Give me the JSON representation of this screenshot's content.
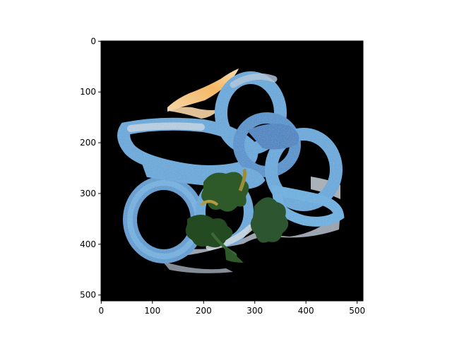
{
  "figure": {
    "image_size": [
      512,
      512
    ],
    "x_axis": {
      "ticks": [
        0,
        100,
        200,
        300,
        400,
        500
      ],
      "tick_labels": [
        "0",
        "100",
        "200",
        "300",
        "400",
        "500"
      ],
      "range": [
        -0.5,
        511.5
      ]
    },
    "y_axis": {
      "ticks": [
        0,
        100,
        200,
        300,
        400,
        500
      ],
      "tick_labels": [
        "0",
        "100",
        "200",
        "300",
        "400",
        "500"
      ],
      "range": [
        511.5,
        -0.5
      ],
      "inverted": true
    },
    "image_content": {
      "description_icon": "fried-onion-rings-with-parsley-and-lemon",
      "background_color": "#000000",
      "onion_ring_color": "#5aa8e0",
      "lemon_color": "#f2c27a",
      "parsley_color": "#2e5a2a"
    }
  }
}
